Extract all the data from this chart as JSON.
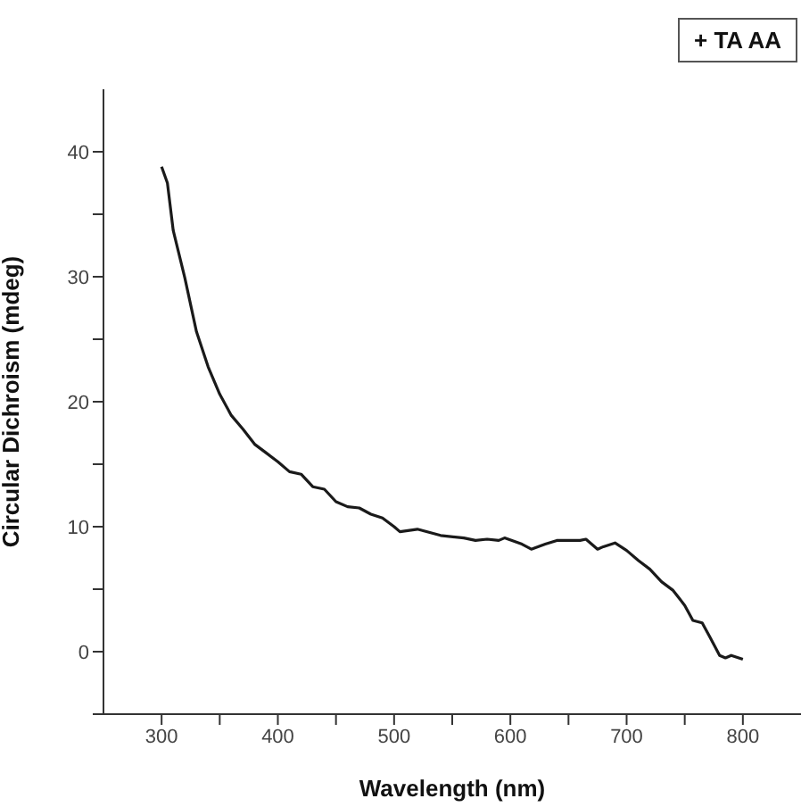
{
  "chart_data": {
    "type": "line",
    "xlabel": "Wavelength (nm)",
    "ylabel": "Circular Dichroism (mdeg)",
    "annotations": [
      "+ TA AA"
    ],
    "xlim": [
      250,
      850
    ],
    "ylim": [
      -5,
      45
    ],
    "xticks": [
      300,
      {
        "value": 350,
        "label": null
      },
      400,
      {
        "value": 450,
        "label": null
      },
      500,
      {
        "value": 550,
        "label": null
      },
      600,
      {
        "value": 650,
        "label": null
      },
      700,
      {
        "value": 750,
        "label": null
      },
      800
    ],
    "yticks": [
      {
        "value": -5,
        "label": null
      },
      0,
      {
        "value": 5,
        "label": null
      },
      10,
      {
        "value": 15,
        "label": null
      },
      20,
      {
        "value": 25,
        "label": null
      },
      30,
      {
        "value": 35,
        "label": null
      },
      40
    ],
    "grid": false,
    "legend": false,
    "marker": "none",
    "line_style": "solid",
    "series": [
      {
        "color": "#1a1a1a",
        "x": [
          300,
          305,
          310,
          320,
          330,
          340,
          350,
          360,
          370,
          380,
          390,
          400,
          410,
          420,
          430,
          440,
          450,
          460,
          470,
          480,
          490,
          500,
          505,
          520,
          540,
          560,
          570,
          580,
          590,
          595,
          610,
          618,
          630,
          640,
          660,
          665,
          675,
          680,
          690,
          700,
          710,
          720,
          730,
          740,
          750,
          757,
          765,
          772,
          780,
          785,
          790,
          800
        ],
        "values": [
          38.8,
          37.5,
          33.7,
          29.9,
          25.6,
          22.8,
          20.6,
          18.9,
          17.8,
          16.6,
          15.9,
          15.2,
          14.4,
          14.2,
          13.2,
          13.0,
          12.0,
          11.6,
          11.5,
          11.0,
          10.7,
          10.0,
          9.6,
          9.8,
          9.3,
          9.1,
          8.9,
          9.0,
          8.9,
          9.1,
          8.6,
          8.2,
          8.6,
          8.9,
          8.9,
          9.0,
          8.2,
          8.4,
          8.7,
          8.1,
          7.3,
          6.6,
          5.6,
          4.9,
          3.7,
          2.5,
          2.3,
          1.1,
          -0.3,
          -0.5,
          -0.3,
          -0.6
        ]
      }
    ]
  }
}
